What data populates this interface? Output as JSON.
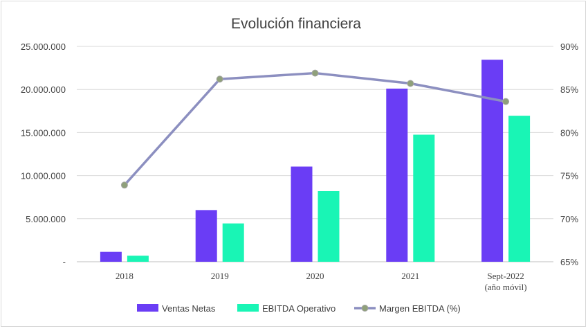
{
  "chart_data": {
    "type": "bar",
    "title": "Evolución financiera",
    "categories": [
      [
        "2018"
      ],
      [
        "2019"
      ],
      [
        "2020"
      ],
      [
        "2021"
      ],
      [
        "Sept-2022",
        "(año móvil)"
      ]
    ],
    "series": [
      {
        "name": "Ventas Netas",
        "type": "bar",
        "axis": "left",
        "color": "#6a3df5",
        "values": [
          1150000,
          6000000,
          11050000,
          20100000,
          23450000
        ]
      },
      {
        "name": "EBITDA Operativo",
        "type": "bar",
        "axis": "left",
        "color": "#19f5b5",
        "values": [
          700000,
          4450000,
          8200000,
          14750000,
          16950000
        ]
      },
      {
        "name": "Margen EBITDA (%)",
        "type": "line",
        "axis": "right",
        "color": "#8c8fc0",
        "marker_color": "#8fa07a",
        "values": [
          73.9,
          86.2,
          86.9,
          85.7,
          83.6
        ]
      }
    ],
    "left_axis": {
      "ylim": [
        0,
        25000000
      ],
      "ticks": [
        0,
        5000000,
        10000000,
        15000000,
        20000000,
        25000000
      ],
      "tick_labels": [
        "-",
        "5.000.000",
        "10.000.000",
        "15.000.000",
        "20.000.000",
        "25.000.000"
      ]
    },
    "right_axis": {
      "ylim": [
        65,
        90
      ],
      "ticks": [
        65,
        70,
        75,
        80,
        85,
        90
      ],
      "tick_labels": [
        "65%",
        "70%",
        "75%",
        "80%",
        "85%",
        "90%"
      ]
    },
    "grid": true,
    "legend_position": "bottom"
  }
}
